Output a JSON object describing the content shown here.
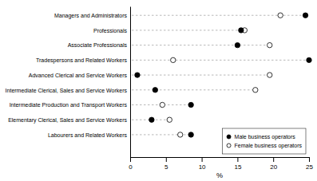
{
  "chart_data": {
    "type": "dot",
    "categories": [
      "Managers and Administrators",
      "Professionals",
      "Associate Professionals",
      "Tradespersons and Related Workers",
      "Advanced Clerical and Service Workers",
      "Intermediate Clerical, Sales and Service Workers",
      "Intermediate Production and Transport Workers",
      "Elementary Clerical, Sales and Service Workers",
      "Labourers and Related Workers"
    ],
    "series": [
      {
        "name": "Male business operators",
        "color": "#000000",
        "marker": "circle",
        "values": [
          24.5,
          15.5,
          15.0,
          25.0,
          1.0,
          3.5,
          8.5,
          3.0,
          8.5
        ]
      },
      {
        "name": "Female business operators",
        "color": "#ffffff",
        "marker": "circle",
        "values": [
          21.0,
          16.0,
          19.5,
          6.0,
          19.5,
          17.5,
          4.5,
          5.5,
          7.0
        ]
      }
    ],
    "xlabel": "%",
    "xlim": [
      0,
      25
    ],
    "xticks": [
      0,
      5,
      10,
      15,
      20,
      25
    ],
    "legend": "lower-right",
    "grid": false
  }
}
